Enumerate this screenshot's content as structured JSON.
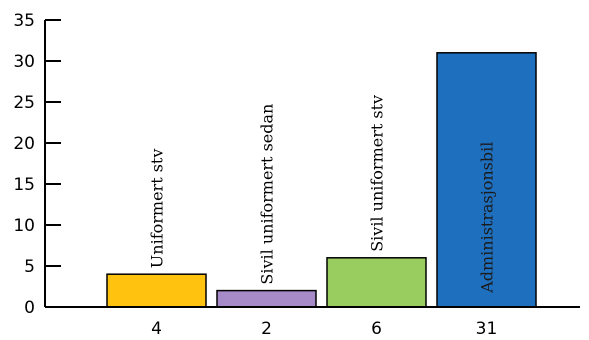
{
  "chart_data": {
    "type": "bar",
    "categories": [
      "Uniformert stv",
      "Sivil uniformert sedan",
      "Sivil uniformert stv",
      "Administrasjonsbil"
    ],
    "values": [
      4,
      2,
      6,
      31
    ],
    "data_labels": [
      "4",
      "2",
      "6",
      "31"
    ],
    "colors": [
      "#FFC20E",
      "#A78BC8",
      "#9ACD5F",
      "#1F6FBF"
    ],
    "category_label_colors": [
      "#000000",
      "#000000",
      "#000000",
      "#1a1a1a"
    ],
    "ylim": [
      0,
      35
    ],
    "yticks": [
      0,
      5,
      10,
      15,
      20,
      25,
      30,
      35
    ],
    "grid": false,
    "legend": "none",
    "title": "",
    "xlabel": "",
    "ylabel": ""
  }
}
